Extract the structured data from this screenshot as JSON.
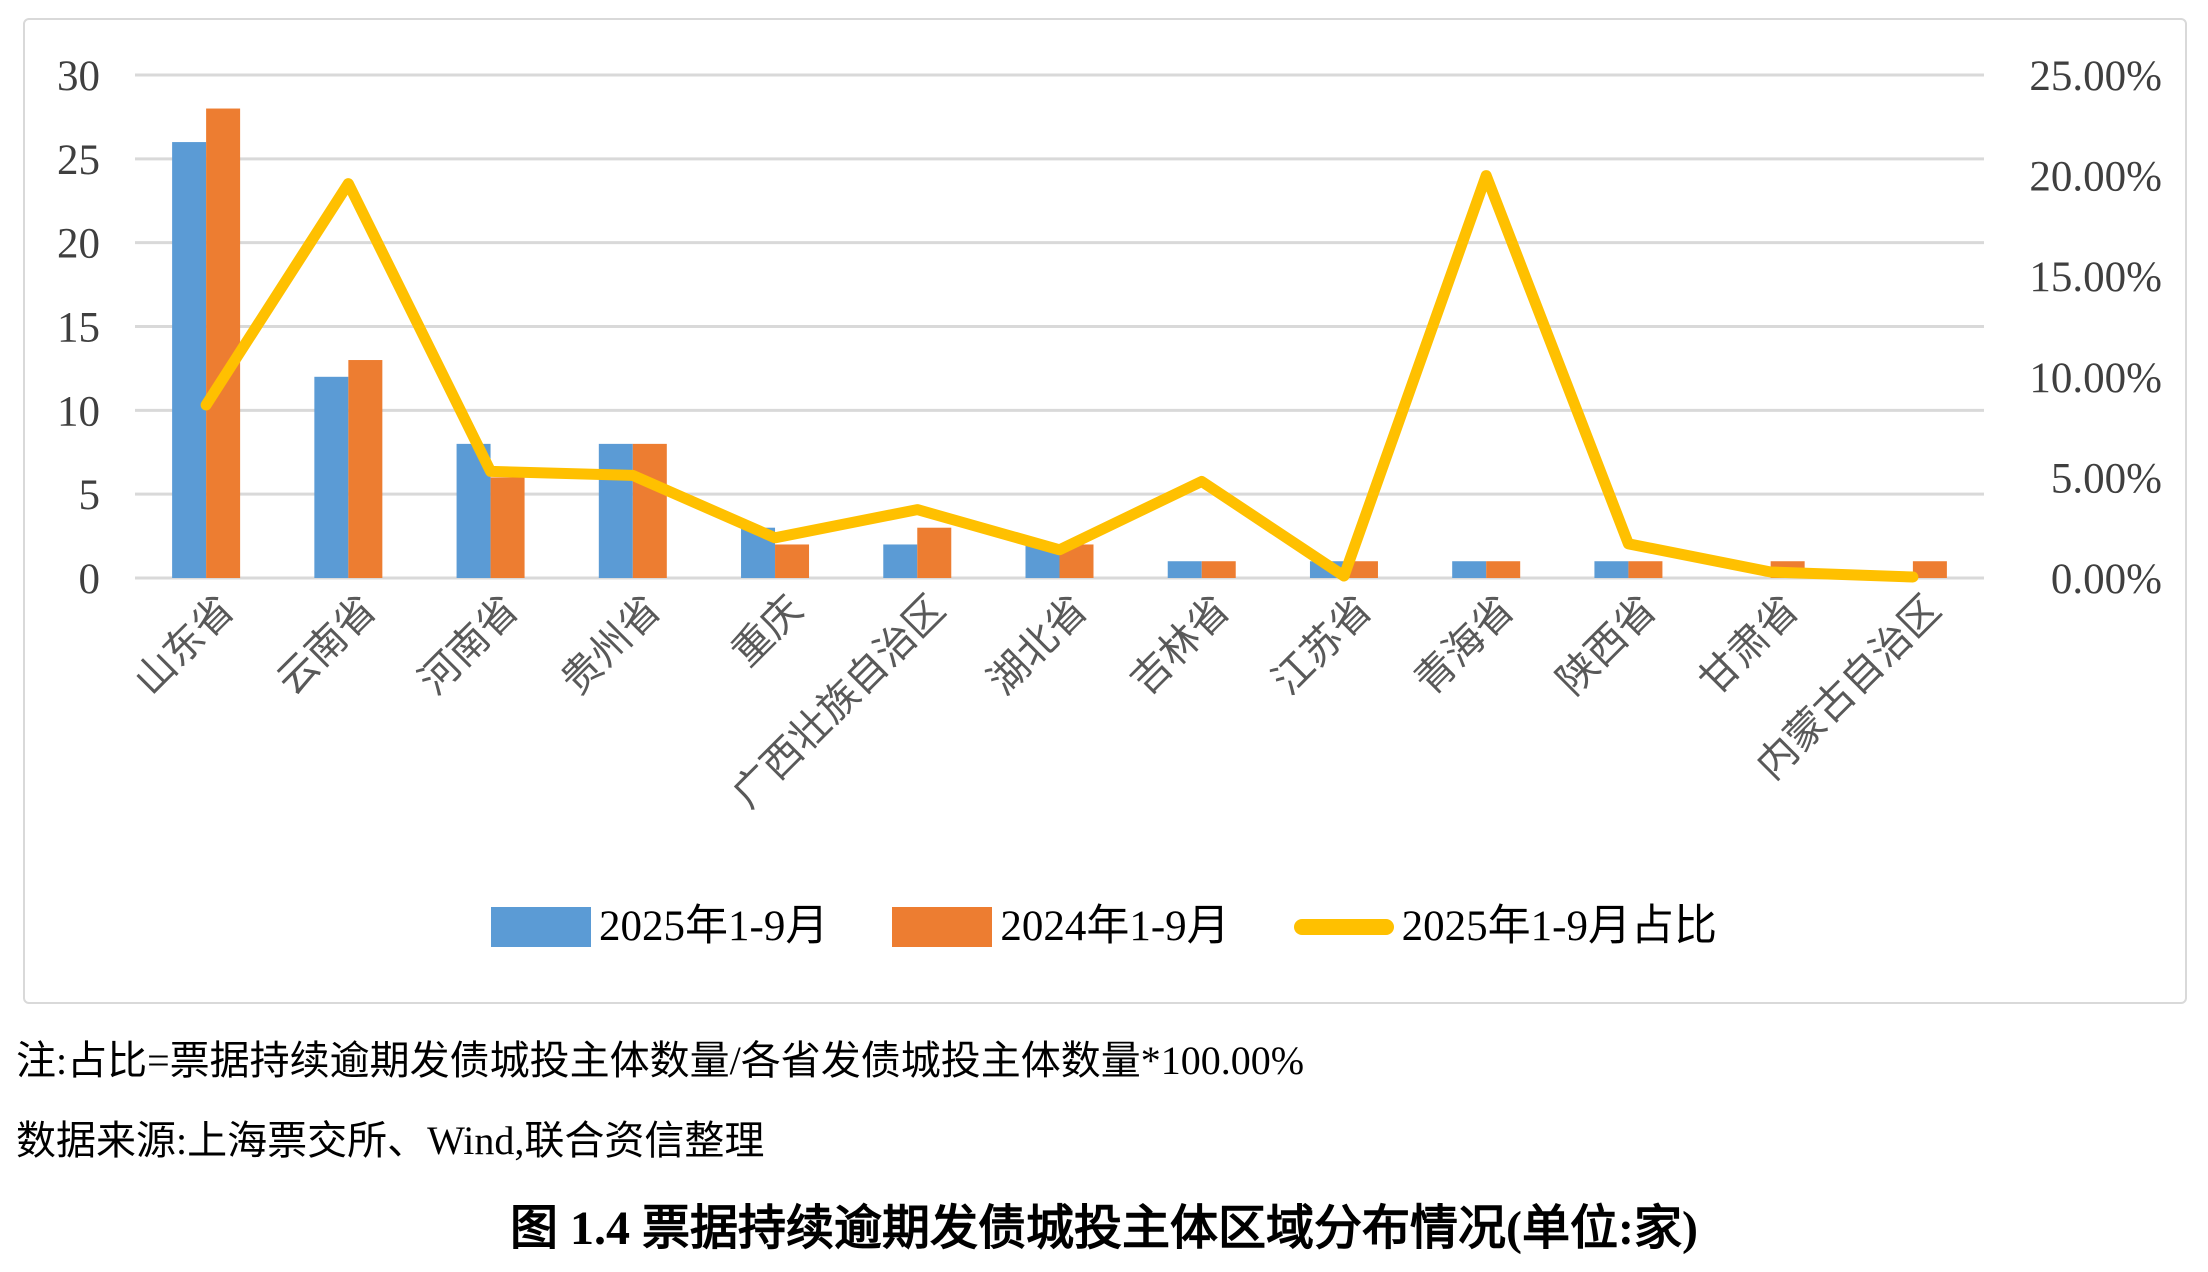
{
  "chart_data": {
    "type": "bar",
    "subtype": "bar+line combo, dual axis",
    "categories": [
      "山东省",
      "云南省",
      "河南省",
      "贵州省",
      "重庆",
      "广西壮族自治区",
      "湖北省",
      "吉林省",
      "江苏省",
      "青海省",
      "陕西省",
      "甘肃省",
      "内蒙古自治区"
    ],
    "series": [
      {
        "name": "2025年1-9月",
        "type": "bar",
        "axis": "left",
        "color": "#5B9BD5",
        "values": [
          26,
          12,
          8,
          8,
          3,
          2,
          2,
          1,
          1,
          1,
          1,
          0,
          0
        ]
      },
      {
        "name": "2024年1-9月",
        "type": "bar",
        "axis": "left",
        "color": "#ED7D31",
        "values": [
          28,
          13,
          6,
          8,
          2,
          3,
          2,
          1,
          1,
          1,
          1,
          1,
          1
        ]
      },
      {
        "name": "2025年1-9月占比",
        "type": "line",
        "axis": "right",
        "color": "#FFC000",
        "values": [
          8.6,
          19.6,
          5.3,
          5.1,
          2.0,
          3.4,
          1.4,
          4.8,
          0.1,
          20.0,
          1.7,
          0.3,
          0.05
        ]
      }
    ],
    "left_axis": {
      "min": 0,
      "max": 30,
      "step": 5,
      "tick_labels": [
        "0",
        "5",
        "10",
        "15",
        "20",
        "25",
        "30"
      ]
    },
    "right_axis": {
      "min": 0,
      "max": 25,
      "step": 5,
      "tick_labels": [
        "0.00%",
        "5.00%",
        "10.00%",
        "15.00%",
        "20.00%",
        "25.00%"
      ]
    },
    "grid": true,
    "gridline_color": "#D9D9D9",
    "axis_text_color": "#3F3F3F",
    "category_text_color": "#595959",
    "legend_position": "bottom"
  },
  "legend": {
    "items": [
      {
        "label": "2025年1-9月",
        "swatch": "bar",
        "color": "#5B9BD5"
      },
      {
        "label": "2024年1-9月",
        "swatch": "bar",
        "color": "#ED7D31"
      },
      {
        "label": "2025年1-9月占比",
        "swatch": "line",
        "color": "#FFC000"
      }
    ]
  },
  "notes": {
    "line1": "注:占比=票据持续逾期发债城投主体数量/各省发债城投主体数量*100.00%",
    "line2": "数据来源:上海票交所、Wind,联合资信整理"
  },
  "caption": "图 1.4  票据持续逾期发债城投主体区域分布情况(单位:家)"
}
